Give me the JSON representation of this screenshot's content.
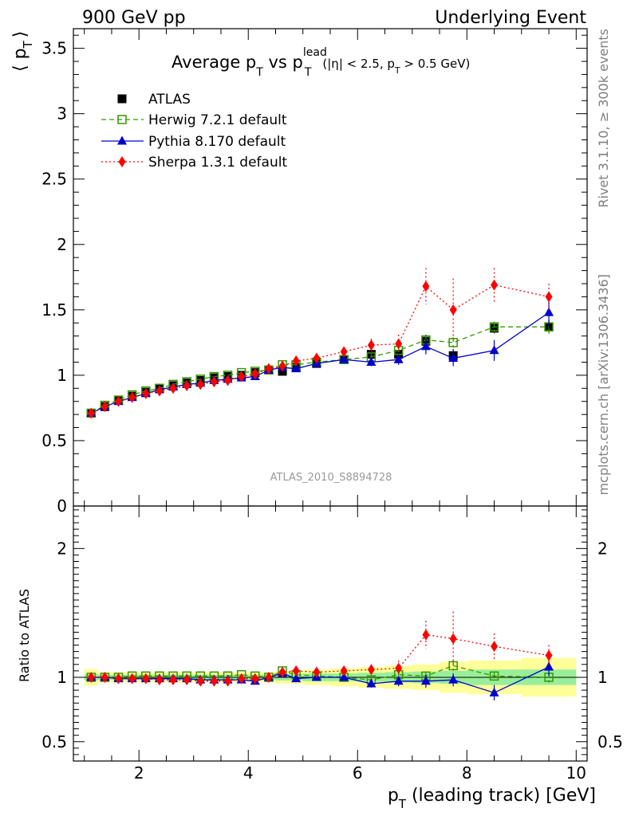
{
  "header": {
    "left": "900 GeV pp",
    "right": "Underlying Event"
  },
  "side_labels": {
    "rivet": "Rivet 3.1.10, ≥ 300k events",
    "mcplots": "mcplots.cern.ch [arXiv:1306.3436]"
  },
  "chart_data": [
    {
      "type": "scatter",
      "title": "Average p_T vs p_T^lead (|η| < 2.5, p_T > 0.5 GeV)",
      "title_parts": {
        "main": "Average p",
        "sub1": "T",
        "vs": " vs p",
        "sup": "lead",
        "sub2": "T",
        "small": "(|η| < 2.5, p",
        "small_sub": "T",
        "small_end": " > 0.5 GeV)"
      },
      "ylabel": "⟨ p_T ⟩",
      "ylabel_parts": {
        "open": "⟨ p",
        "sub": "T",
        "close": "⟩"
      },
      "xlim": [
        0.8,
        10.2
      ],
      "ylim": [
        0,
        3.65
      ],
      "yticks": [
        {
          "v": 0,
          "label": "0"
        },
        {
          "v": 0.5,
          "label": "0.5"
        },
        {
          "v": 1,
          "label": "1"
        },
        {
          "v": 1.5,
          "label": "1.5"
        },
        {
          "v": 2,
          "label": "2"
        },
        {
          "v": 2.5,
          "label": "2.5"
        },
        {
          "v": 3,
          "label": "3"
        },
        {
          "v": 3.5,
          "label": "3.5"
        }
      ],
      "watermark": "ATLAS_2010_S8894728",
      "legend_position": "top-left",
      "x": [
        1.125,
        1.375,
        1.625,
        1.875,
        2.125,
        2.375,
        2.625,
        2.875,
        3.125,
        3.375,
        3.625,
        3.875,
        4.125,
        4.375,
        4.625,
        4.875,
        5.25,
        5.75,
        6.25,
        6.75,
        7.25,
        7.75,
        8.5,
        9.5
      ],
      "series": [
        {
          "name": "ATLAS",
          "color": "#000000",
          "marker": "square",
          "line": "none",
          "values": [
            0.71,
            0.76,
            0.81,
            0.84,
            0.87,
            0.9,
            0.92,
            0.94,
            0.96,
            0.98,
            0.99,
            1.0,
            1.02,
            1.04,
            1.03,
            1.06,
            1.09,
            1.12,
            1.16,
            1.16,
            1.26,
            1.15,
            1.36,
            1.37
          ],
          "errors": [
            0.01,
            0.01,
            0.01,
            0.01,
            0.01,
            0.01,
            0.01,
            0.01,
            0.01,
            0.01,
            0.01,
            0.01,
            0.01,
            0.01,
            0.02,
            0.02,
            0.02,
            0.02,
            0.03,
            0.04,
            0.05,
            0.05,
            0.04,
            0.05
          ]
        },
        {
          "name": "Herwig 7.2.1 default",
          "color": "#339900",
          "marker": "open-square",
          "line": "dashed",
          "values": [
            0.71,
            0.77,
            0.81,
            0.85,
            0.88,
            0.9,
            0.93,
            0.95,
            0.97,
            0.99,
            1.0,
            1.02,
            1.03,
            1.04,
            1.08,
            1.08,
            1.1,
            1.12,
            1.14,
            1.19,
            1.27,
            1.25,
            1.37,
            1.37
          ],
          "errors": [
            0.005,
            0.005,
            0.005,
            0.005,
            0.005,
            0.005,
            0.005,
            0.005,
            0.005,
            0.005,
            0.005,
            0.005,
            0.01,
            0.01,
            0.01,
            0.01,
            0.01,
            0.02,
            0.02,
            0.03,
            0.03,
            0.04,
            0.04,
            0.05
          ]
        },
        {
          "name": "Pythia 8.170 default",
          "color": "#0000cc",
          "marker": "triangle",
          "line": "solid",
          "values": [
            0.71,
            0.76,
            0.8,
            0.83,
            0.86,
            0.89,
            0.91,
            0.93,
            0.94,
            0.96,
            0.97,
            0.98,
            0.99,
            1.04,
            1.06,
            1.05,
            1.09,
            1.12,
            1.1,
            1.12,
            1.22,
            1.13,
            1.19,
            1.48
          ],
          "errors": [
            0.005,
            0.005,
            0.005,
            0.005,
            0.005,
            0.005,
            0.005,
            0.005,
            0.005,
            0.005,
            0.005,
            0.01,
            0.01,
            0.01,
            0.01,
            0.02,
            0.02,
            0.02,
            0.03,
            0.04,
            0.06,
            0.06,
            0.08,
            0.1
          ]
        },
        {
          "name": "Sherpa 1.3.1 default",
          "color": "#ff0000",
          "marker": "diamond",
          "line": "dotted",
          "values": [
            0.71,
            0.76,
            0.8,
            0.83,
            0.86,
            0.88,
            0.9,
            0.92,
            0.93,
            0.95,
            0.96,
            0.99,
            1.01,
            1.05,
            1.07,
            1.11,
            1.13,
            1.18,
            1.23,
            1.24,
            1.68,
            1.5,
            1.69,
            1.6
          ]
        }
      ],
      "sherpa_errors": [
        0.005,
        0.005,
        0.005,
        0.005,
        0.005,
        0.005,
        0.005,
        0.005,
        0.005,
        0.005,
        0.005,
        0.01,
        0.01,
        0.01,
        0.01,
        0.02,
        0.02,
        0.03,
        0.05,
        0.07,
        0.14,
        0.24,
        0.13,
        0.1
      ]
    },
    {
      "type": "scatter",
      "ylabel": "Ratio to ATLAS",
      "xlabel": "p_T (leading track) [GeV]",
      "xlabel_parts": {
        "main": "p",
        "sub": "T",
        "rest": " (leading track) [GeV]"
      },
      "xlim": [
        0.8,
        10.2
      ],
      "ylim": [
        0.35,
        2.33
      ],
      "xticks": [
        {
          "v": 2,
          "label": "2"
        },
        {
          "v": 4,
          "label": "4"
        },
        {
          "v": 6,
          "label": "6"
        },
        {
          "v": 8,
          "label": "8"
        },
        {
          "v": 10,
          "label": "10"
        }
      ],
      "yticks": [
        {
          "v": 0.5,
          "label": "0.5"
        },
        {
          "v": 1,
          "label": "1"
        },
        {
          "v": 2,
          "label": "2"
        }
      ],
      "bands": {
        "bin_edges": [
          1.0,
          1.25,
          1.5,
          1.75,
          2.0,
          2.25,
          2.5,
          2.75,
          3.0,
          3.25,
          3.5,
          3.75,
          4.0,
          4.25,
          4.5,
          4.75,
          5.0,
          5.5,
          6.0,
          6.5,
          7.0,
          7.5,
          8.0,
          9.0,
          10.0
        ],
        "green_halfwidth": [
          0.025,
          0.02,
          0.02,
          0.02,
          0.02,
          0.02,
          0.02,
          0.02,
          0.02,
          0.02,
          0.02,
          0.02,
          0.02,
          0.02,
          0.025,
          0.025,
          0.03,
          0.03,
          0.035,
          0.04,
          0.045,
          0.05,
          0.06,
          0.06
        ],
        "yellow_halfwidth": [
          0.065,
          0.04,
          0.04,
          0.04,
          0.04,
          0.04,
          0.04,
          0.04,
          0.04,
          0.04,
          0.04,
          0.04,
          0.04,
          0.04,
          0.05,
          0.05,
          0.06,
          0.07,
          0.08,
          0.09,
          0.1,
          0.12,
          0.13,
          0.15
        ]
      },
      "series": [
        {
          "name": "Herwig 7.2.1 default",
          "values": [
            1.0,
            1.0,
            1.0,
            1.01,
            1.01,
            1.01,
            1.01,
            1.01,
            1.01,
            1.01,
            1.01,
            1.02,
            1.01,
            1.0,
            1.05,
            1.02,
            1.01,
            1.0,
            0.98,
            1.02,
            1.01,
            1.09,
            1.01,
            1.0
          ],
          "errors": [
            0.005,
            0.005,
            0.005,
            0.005,
            0.005,
            0.005,
            0.005,
            0.005,
            0.005,
            0.005,
            0.005,
            0.005,
            0.01,
            0.01,
            0.01,
            0.01,
            0.01,
            0.02,
            0.02,
            0.03,
            0.03,
            0.04,
            0.03,
            0.04
          ]
        },
        {
          "name": "Pythia 8.170 default",
          "values": [
            1.0,
            1.0,
            0.99,
            0.99,
            0.99,
            0.99,
            0.99,
            0.99,
            0.98,
            0.98,
            0.98,
            0.98,
            0.97,
            1.0,
            1.03,
            0.99,
            1.0,
            1.0,
            0.95,
            0.97,
            0.97,
            0.98,
            0.88,
            1.08
          ],
          "errors": [
            0.005,
            0.005,
            0.005,
            0.005,
            0.005,
            0.005,
            0.005,
            0.005,
            0.005,
            0.005,
            0.005,
            0.01,
            0.01,
            0.01,
            0.01,
            0.02,
            0.02,
            0.02,
            0.03,
            0.04,
            0.05,
            0.05,
            0.06,
            0.07
          ]
        },
        {
          "name": "Sherpa 1.3.1 default",
          "values": [
            1.0,
            1.0,
            0.99,
            0.99,
            0.99,
            0.98,
            0.98,
            0.98,
            0.97,
            0.97,
            0.97,
            0.99,
            0.99,
            1.0,
            1.04,
            1.05,
            1.04,
            1.05,
            1.06,
            1.07,
            1.33,
            1.3,
            1.24,
            1.17
          ],
          "errors": [
            0.005,
            0.005,
            0.005,
            0.005,
            0.005,
            0.005,
            0.005,
            0.005,
            0.005,
            0.005,
            0.005,
            0.01,
            0.01,
            0.01,
            0.01,
            0.02,
            0.02,
            0.03,
            0.04,
            0.06,
            0.11,
            0.21,
            0.1,
            0.08
          ]
        }
      ]
    }
  ]
}
